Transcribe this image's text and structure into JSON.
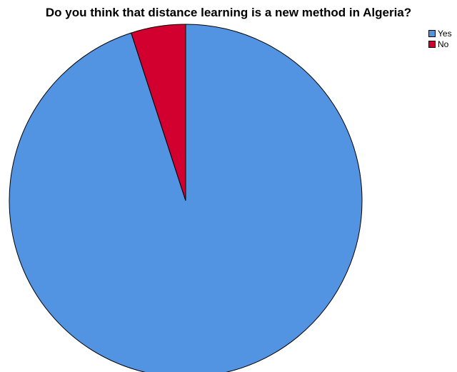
{
  "chart_data": {
    "type": "pie",
    "title": "Do you think that distance learning is a new method in Algeria?",
    "categories": [
      "Yes",
      "No"
    ],
    "values": [
      95,
      5
    ],
    "colors": [
      "#5294e2",
      "#d2002e"
    ],
    "legend_position": "top-right"
  }
}
